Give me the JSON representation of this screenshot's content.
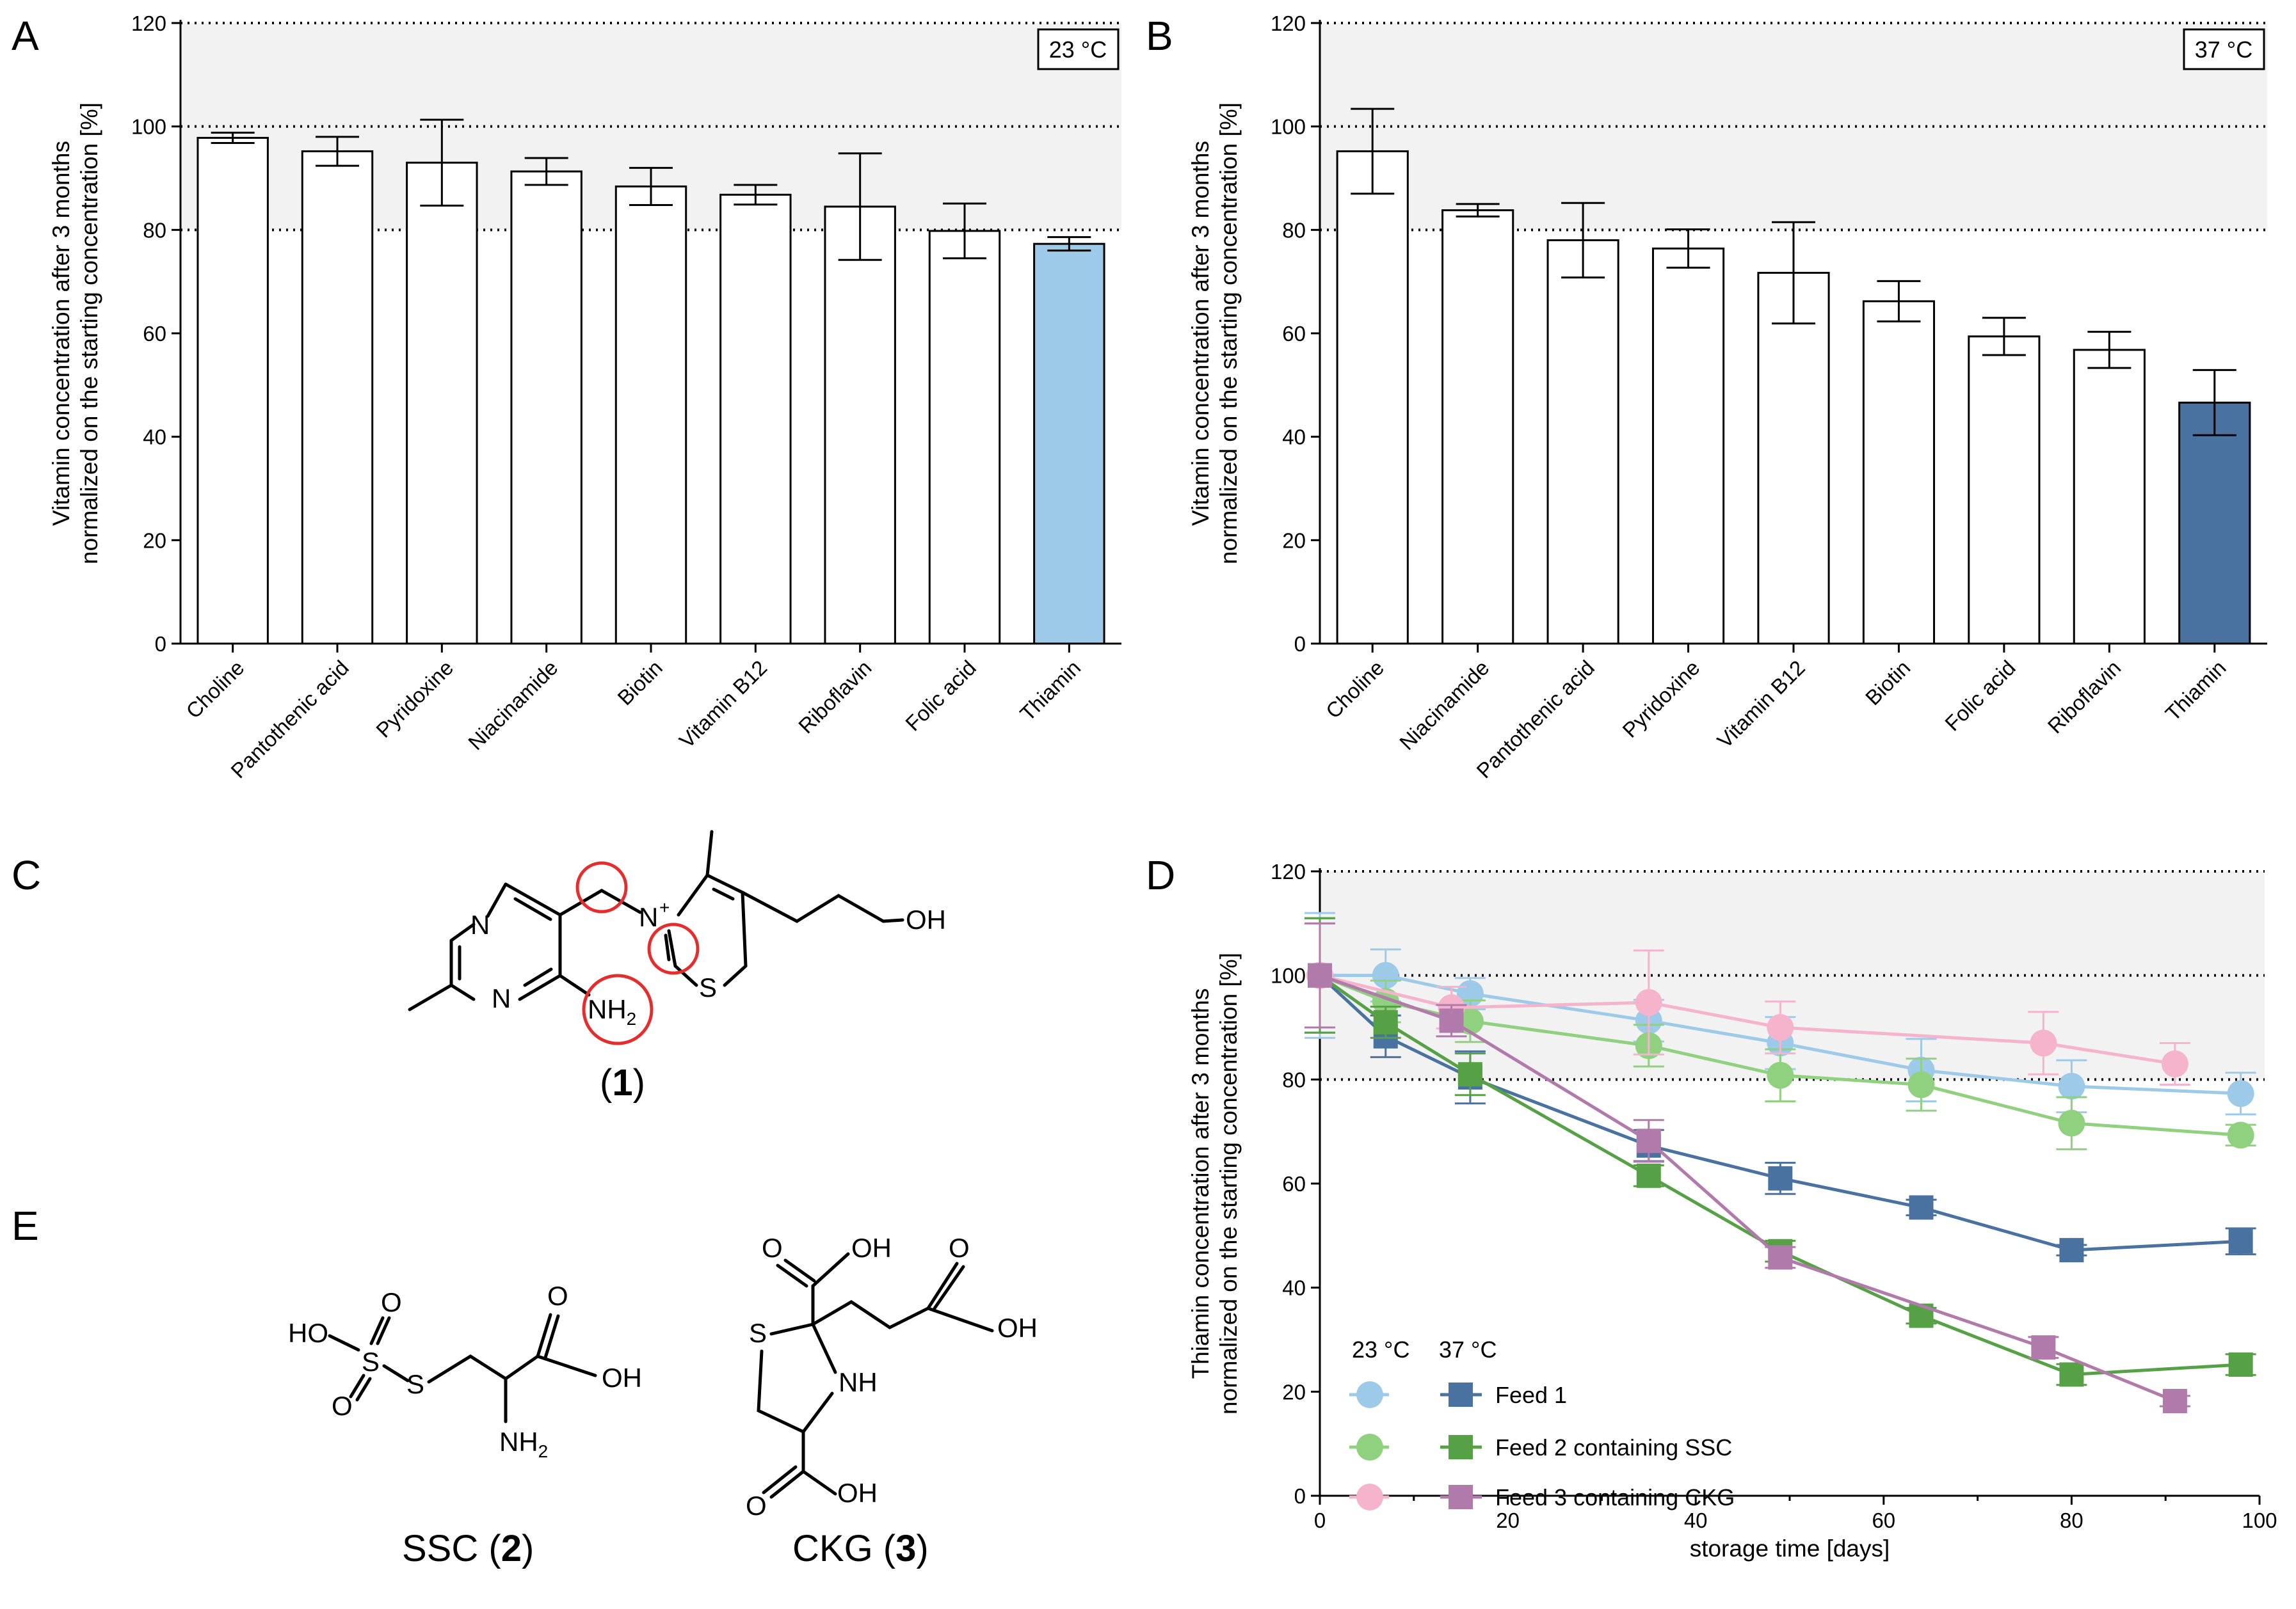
{
  "panels": {
    "A": {
      "letter": "A",
      "temp_label": "23 °C"
    },
    "B": {
      "letter": "B",
      "temp_label": "37 °C"
    },
    "C": {
      "letter": "C",
      "compound_label_open": "(",
      "compound_number": "1",
      "compound_label_close": ")"
    },
    "D": {
      "letter": "D"
    },
    "E": {
      "letter": "E",
      "ssc_name": "SSC (",
      "ssc_number": "2",
      "ssc_close": ")",
      "ckg_name": "CKG (",
      "ckg_number": "3",
      "ckg_close": ")"
    }
  },
  "chem_labels": {
    "N": "N",
    "N_plus": "N",
    "plus": "+",
    "S": "S",
    "OH": "OH",
    "NH2": "NH",
    "sub2": "2",
    "HO": "HO",
    "O": "O",
    "NH": "NH"
  },
  "colors": {
    "light_blue": "#9ecae9",
    "dark_blue": "#4a72a0",
    "light_green": "#8fd17e",
    "dark_green": "#56a145",
    "light_pink": "#f6b4cc",
    "dark_purple": "#b07aaa",
    "red_circle": "#e52d2d",
    "band": "#f2f2f2"
  },
  "chart_data": [
    {
      "id": "A",
      "type": "bar",
      "title": "23 °C",
      "ylabel_line1": "Vitamin concentration after 3 months",
      "ylabel_line2": "normalized on the starting concentration [%]",
      "ylim": [
        0,
        120
      ],
      "yticks": [
        0,
        20,
        40,
        60,
        80,
        100,
        120
      ],
      "reference_lines": [
        80,
        100,
        120
      ],
      "categories": [
        "Choline",
        "Pantothenic acid",
        "Pyridoxine",
        "Niacinamide",
        "Biotin",
        "Vitamin B12",
        "Riboflavin",
        "Folic acid",
        "Thiamin"
      ],
      "values": [
        97.8,
        95.2,
        93,
        91.3,
        88.4,
        86.8,
        84.5,
        79.8,
        77.3
      ],
      "errors": [
        1.0,
        2.8,
        8.3,
        2.6,
        3.6,
        1.9,
        10.3,
        5.3,
        1.3
      ],
      "highlight": "Thiamin"
    },
    {
      "id": "B",
      "type": "bar",
      "title": "37 °C",
      "ylabel_line1": "Vitamin concentration after 3 months",
      "ylabel_line2": "normalized on the starting concentration [%]",
      "ylim": [
        0,
        120
      ],
      "yticks": [
        0,
        20,
        40,
        60,
        80,
        100,
        120
      ],
      "reference_lines": [
        80,
        100,
        120
      ],
      "categories": [
        "Choline",
        "Niacinamide",
        "Pantothenic acid",
        "Pyridoxine",
        "Vitamin B12",
        "Biotin",
        "Folic acid",
        "Riboflavin",
        "Thiamin"
      ],
      "values": [
        95.2,
        83.8,
        78,
        76.4,
        71.7,
        66.2,
        59.4,
        56.8,
        46.6
      ],
      "errors": [
        8.2,
        1.2,
        7.2,
        3.7,
        9.8,
        3.9,
        3.6,
        3.5,
        6.3
      ],
      "highlight": "Thiamin"
    },
    {
      "id": "D",
      "type": "line",
      "ylabel_line1": "Thiamin concentration after 3 months",
      "ylabel_line2": "normalized on the starting concentration [%]",
      "xlabel": "storage time [days]",
      "xlim": [
        0,
        100
      ],
      "ylim": [
        0,
        120
      ],
      "xticks": [
        0,
        20,
        40,
        60,
        80,
        100
      ],
      "yticks": [
        0,
        20,
        40,
        60,
        80,
        100,
        120
      ],
      "reference_lines": [
        80,
        100,
        120
      ],
      "legend_header_23": "23 °C",
      "legend_header_37": "37  °C",
      "series": [
        {
          "name": "Feed 1 (23 °C)",
          "temp": "23",
          "marker": "circle",
          "color": "#9ecae9",
          "x": [
            0,
            7,
            16,
            35,
            49,
            64,
            80,
            98
          ],
          "y": [
            100,
            100,
            96.5,
            91.3,
            87,
            81.8,
            78.7,
            77.3
          ],
          "err": [
            12,
            5,
            3,
            4,
            5,
            6,
            5,
            4
          ]
        },
        {
          "name": "Feed 2 containing SSC (23 °C)",
          "temp": "23",
          "marker": "circle",
          "color": "#8fd17e",
          "x": [
            0,
            7,
            16,
            35,
            49,
            64,
            80,
            98
          ],
          "y": [
            100,
            95,
            91.2,
            86.5,
            80.8,
            79,
            71.6,
            69.3
          ],
          "err": [
            10,
            4,
            4,
            4,
            5,
            5,
            5,
            2
          ]
        },
        {
          "name": "Feed 3 containing CKG (23 °C)",
          "temp": "23",
          "marker": "circle",
          "color": "#f6b4cc",
          "x": [
            0,
            14,
            35,
            49,
            77,
            91
          ],
          "y": [
            100,
            93.8,
            94.8,
            90,
            87,
            83
          ],
          "err": [
            10,
            4,
            10,
            5,
            6,
            4
          ]
        },
        {
          "name": "Feed 1",
          "temp": "37",
          "marker": "square",
          "color": "#4a72a0",
          "x": [
            0,
            7,
            16,
            35,
            49,
            64,
            80,
            98
          ],
          "y": [
            100,
            88.3,
            80.4,
            67.3,
            61,
            55.4,
            47.2,
            48.9
          ],
          "err": [
            11,
            4,
            5,
            3,
            3,
            1.5,
            1,
            2.5
          ]
        },
        {
          "name": "Feed 2 containing SSC",
          "temp": "37",
          "marker": "square",
          "color": "#56a145",
          "x": [
            0,
            7,
            16,
            35,
            49,
            64,
            80,
            98
          ],
          "y": [
            100,
            91,
            81,
            61.5,
            47,
            34.6,
            23.3,
            25.2
          ],
          "err": [
            11,
            3,
            4,
            2,
            2,
            1.5,
            2,
            2
          ]
        },
        {
          "name": "Feed 3 containing CKG",
          "temp": "37",
          "marker": "square",
          "color": "#b07aaa",
          "x": [
            0,
            14,
            35,
            49,
            77,
            91
          ],
          "y": [
            100,
            91.3,
            68.2,
            45.8,
            28.5,
            18.2
          ],
          "err": [
            10,
            3,
            4,
            2,
            2,
            1
          ]
        }
      ],
      "legend_labels": [
        "Feed 1",
        "Feed 2 containing SSC",
        "Feed 3 containing CKG"
      ]
    }
  ]
}
